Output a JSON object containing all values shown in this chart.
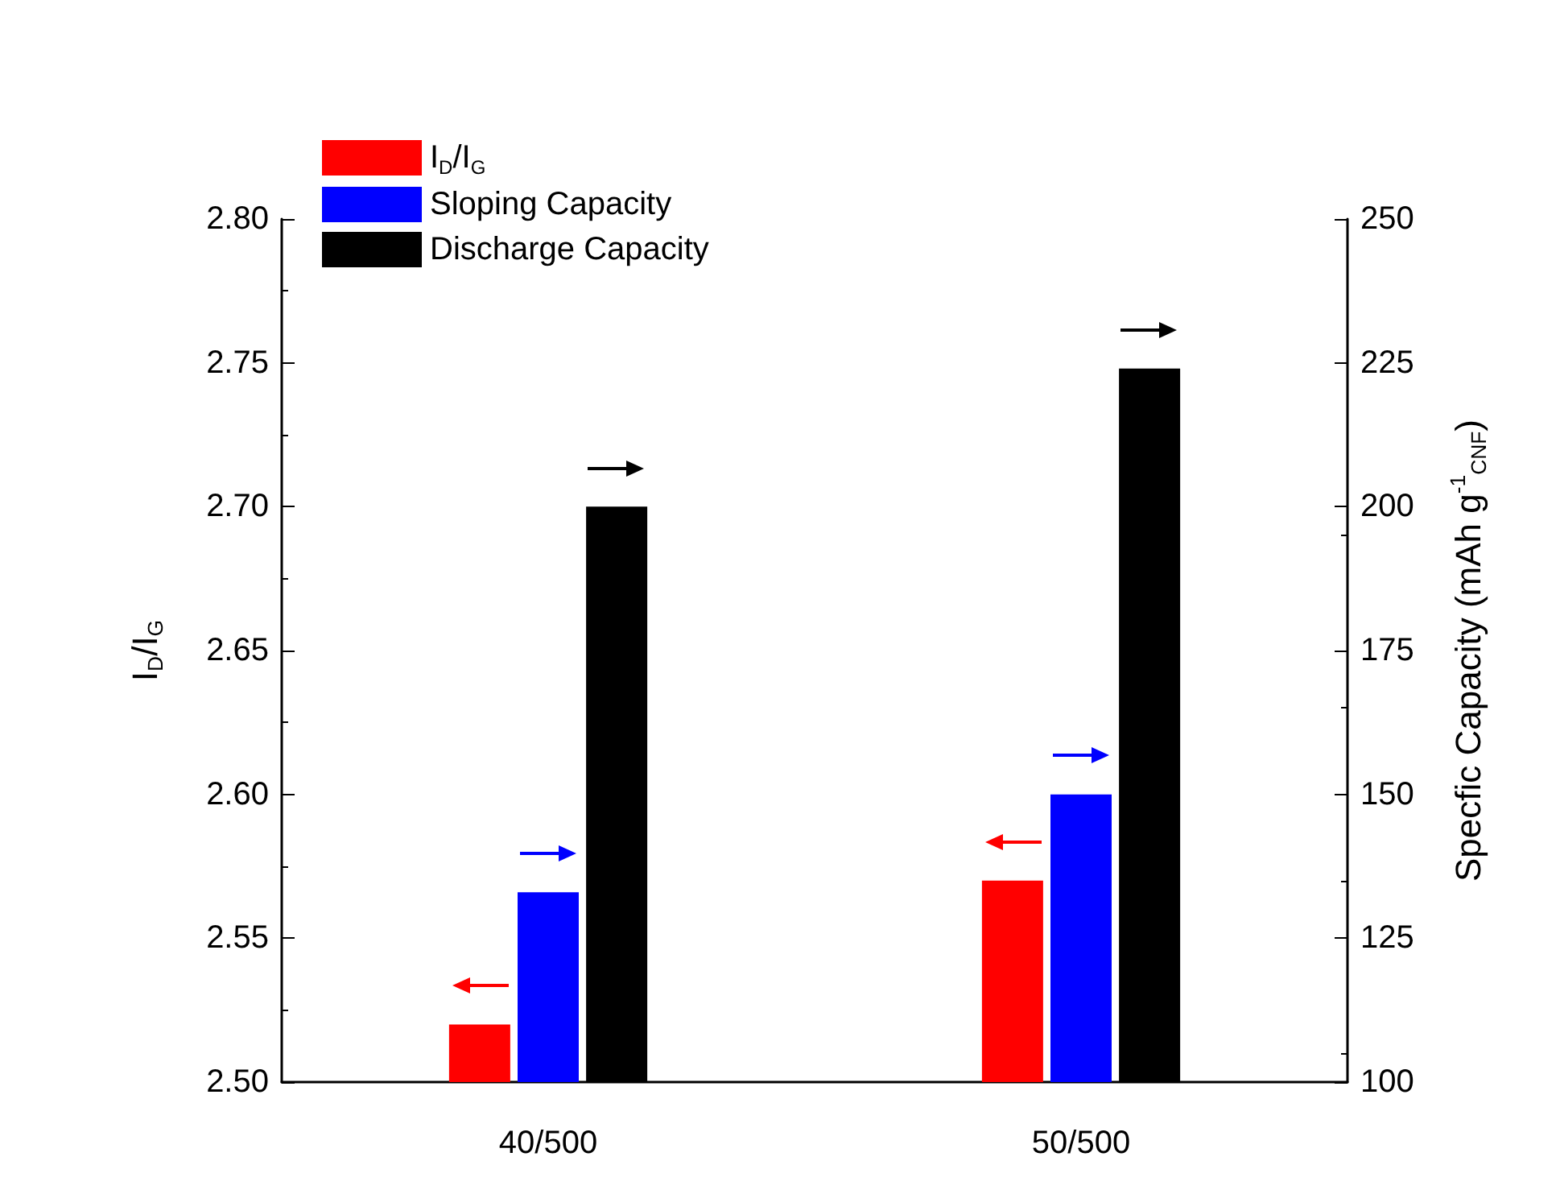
{
  "chart_data": {
    "type": "bar",
    "categories": [
      "40/500",
      "50/500"
    ],
    "series": [
      {
        "name": "I$_{D}$/I$_{G}$",
        "color": "#ff0000",
        "values": [
          2.52,
          2.57
        ]
      },
      {
        "name": "Sloping Capacity",
        "color": "#0000ff",
        "values": [
          133,
          150
        ],
        "axis": "y2"
      },
      {
        "name": "Discharge Capacity",
        "color": "#000000",
        "values": [
          200,
          224
        ],
        "axis": "y2"
      }
    ],
    "ylabel": "I$_{D}$/I$_{G}$",
    "y2label": "Specfic Capacity (mAh g$^{-1}$$_{CNF}$)",
    "ylim": [
      2.5,
      2.8
    ],
    "yticks": [
      {
        "value": 2.5,
        "label": "2.50"
      },
      2.55,
      {
        "value": 2.6,
        "label": "2.60"
      },
      2.65,
      {
        "value": 2.7,
        "label": "2.70"
      },
      2.75,
      {
        "value": 2.8,
        "label": "2.80"
      }
    ],
    "y2lim": [
      100,
      250
    ],
    "y2ticks": [
      100,
      125,
      150,
      175,
      200,
      225,
      250
    ],
    "grid": false,
    "legend": "top left"
  }
}
